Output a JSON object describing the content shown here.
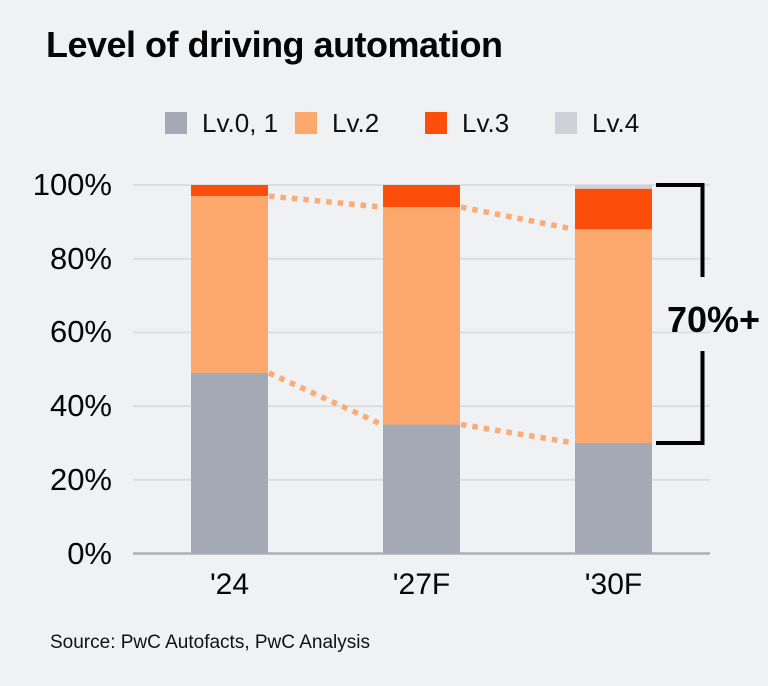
{
  "title": "Level of driving automation",
  "source": "Source: PwC Autofacts, PwC Analysis",
  "annotation": {
    "label": "70%+"
  },
  "colors": {
    "background": "#f0f1f3",
    "gridline": "#dcdee1",
    "axis_line": "#aeb1b7",
    "bracket": "#000000",
    "connector_dotted": "#f9ab79",
    "text": "#060606"
  },
  "chart_data": {
    "type": "bar",
    "stacked": true,
    "title": "Level of driving automation",
    "categories": [
      "'24",
      "'27F",
      "'30F"
    ],
    "series": [
      {
        "name": "Lv.0, 1",
        "color": "#a3aab5",
        "values": [
          49,
          35,
          30
        ]
      },
      {
        "name": "Lv.2",
        "color": "#fca86c",
        "values": [
          48,
          59,
          58
        ]
      },
      {
        "name": "Lv.3",
        "color": "#fa4e0a",
        "values": [
          3,
          6,
          11
        ]
      },
      {
        "name": "Lv.4",
        "color": "#ced2d8",
        "values": [
          0,
          0,
          1
        ]
      }
    ],
    "y_ticks": [
      "0%",
      "20%",
      "40%",
      "60%",
      "80%",
      "100%"
    ],
    "ylim": [
      0,
      100
    ],
    "grid": true,
    "legend_position": "top",
    "connectors": [
      {
        "between": "Lv.2 tops",
        "levels_pct": [
          97,
          94,
          88
        ],
        "style": "dotted"
      },
      {
        "between": "Lv.0,1 tops",
        "levels_pct": [
          49,
          35,
          30
        ],
        "style": "dotted"
      }
    ],
    "bracket_annotation": {
      "text": "70%+",
      "category": "'30F",
      "from_pct": 100,
      "to_pct": 30
    }
  }
}
